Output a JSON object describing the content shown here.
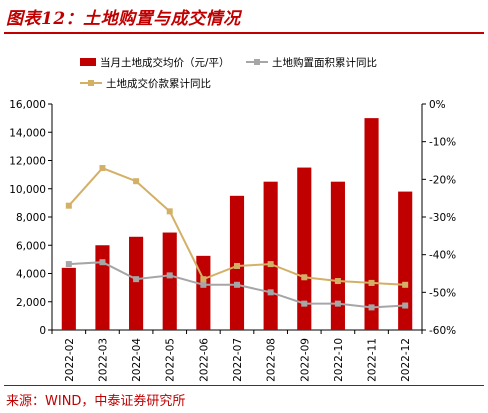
{
  "header": {
    "title": "图表12：土地购置与成交情况"
  },
  "footer": {
    "source": "来源：WIND，中泰证券研究所"
  },
  "colors": {
    "bar": "#c00000",
    "grey_line": "#a6a6a6",
    "gold_line": "#d4b066",
    "accent": "#c00000"
  },
  "chart_data": {
    "type": "bar",
    "title": "",
    "xlabel": "",
    "ylabel": "",
    "categories": [
      "2022-02",
      "2022-03",
      "2022-04",
      "2022-05",
      "2022-06",
      "2022-07",
      "2022-08",
      "2022-09",
      "2022-10",
      "2022-11",
      "2022-12"
    ],
    "ylim": [
      0,
      16000
    ],
    "yticks": [
      0,
      2000,
      4000,
      6000,
      8000,
      10000,
      12000,
      14000,
      16000
    ],
    "yticks_labels": [
      "0",
      "2,000",
      "4,000",
      "6,000",
      "8,000",
      "10,000",
      "12,000",
      "14,000",
      "16,000"
    ],
    "y2lim": [
      -60,
      0
    ],
    "y2ticks": [
      0,
      -10,
      -20,
      -30,
      -40,
      -50,
      -60
    ],
    "y2ticks_labels": [
      "0%",
      "-10%",
      "-20%",
      "-30%",
      "-40%",
      "-50%",
      "-60%"
    ],
    "series": [
      {
        "name": "当月土地成交均价（元/平）",
        "type": "bar",
        "axis": "left",
        "values": [
          4400,
          6000,
          6600,
          6900,
          5250,
          9500,
          10500,
          11500,
          10500,
          15000,
          9800
        ]
      },
      {
        "name": "土地购置面积累计同比",
        "type": "line",
        "axis": "right",
        "values": [
          -42.5,
          -42.0,
          -46.5,
          -45.5,
          -48.0,
          -48.0,
          -50.0,
          -53.0,
          -53.0,
          -54.0,
          -53.5
        ]
      },
      {
        "name": "土地成交价款累计同比",
        "type": "line",
        "axis": "right",
        "values": [
          -27.0,
          -17.0,
          -20.5,
          -28.5,
          -46.5,
          -43.0,
          -42.5,
          -46.0,
          -47.0,
          -47.5,
          -48.0
        ]
      }
    ],
    "legend_position": "top",
    "grid": false
  }
}
